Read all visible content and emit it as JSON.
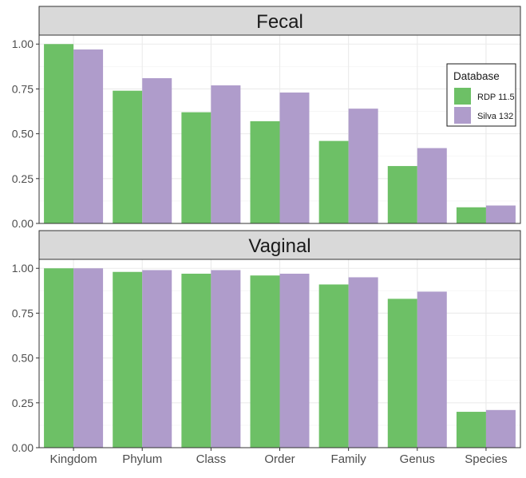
{
  "chart_data": {
    "type": "bar",
    "categories": [
      "Kingdom",
      "Phylum",
      "Class",
      "Order",
      "Family",
      "Genus",
      "Species"
    ],
    "yticks": [
      "0.00",
      "0.25",
      "0.50",
      "0.75",
      "1.00"
    ],
    "ylim": [
      0,
      1.05
    ],
    "grid": true,
    "legend": {
      "title": "Database",
      "placement": "right, inside top panel",
      "entries": [
        {
          "name": "RDP 11.5",
          "color": "#6DC066"
        },
        {
          "name": "Silva 132",
          "color": "#AF9CCB"
        }
      ]
    },
    "panels": [
      {
        "title": "Fecal",
        "series": [
          {
            "name": "RDP 11.5",
            "values": [
              1.0,
              0.74,
              0.62,
              0.57,
              0.46,
              0.32,
              0.09
            ]
          },
          {
            "name": "Silva 132",
            "values": [
              0.97,
              0.81,
              0.77,
              0.73,
              0.64,
              0.42,
              0.1
            ]
          }
        ]
      },
      {
        "title": "Vaginal",
        "series": [
          {
            "name": "RDP 11.5",
            "values": [
              1.0,
              0.98,
              0.97,
              0.96,
              0.91,
              0.83,
              0.2
            ]
          },
          {
            "name": "Silva 132",
            "values": [
              1.0,
              0.99,
              0.99,
              0.97,
              0.95,
              0.87,
              0.21
            ]
          }
        ]
      }
    ]
  }
}
